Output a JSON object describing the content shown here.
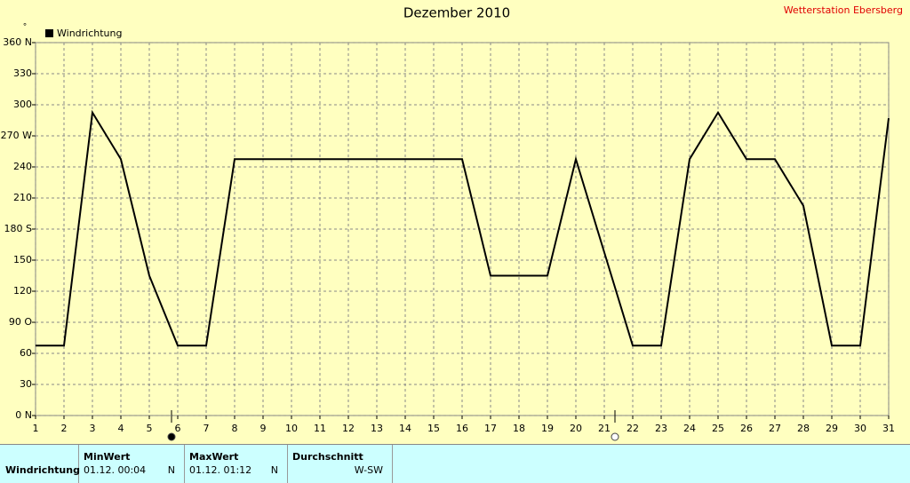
{
  "chart_data": {
    "type": "line",
    "title": "Dezember 2010",
    "station": "Wetterstation Ebersberg",
    "y_unit": "°",
    "x": [
      1,
      2,
      3,
      4,
      5,
      6,
      7,
      8,
      9,
      10,
      11,
      12,
      13,
      14,
      15,
      16,
      17,
      18,
      19,
      20,
      21,
      22,
      23,
      24,
      25,
      26,
      27,
      28,
      29,
      30,
      31
    ],
    "xlim": [
      1,
      31
    ],
    "xticks": [
      1,
      2,
      3,
      4,
      5,
      6,
      7,
      8,
      9,
      10,
      11,
      12,
      13,
      14,
      15,
      16,
      17,
      18,
      19,
      20,
      21,
      22,
      23,
      24,
      25,
      26,
      27,
      28,
      29,
      30,
      31
    ],
    "ylim": [
      0,
      360
    ],
    "yticks": [
      {
        "value": 0,
        "label": "0 N"
      },
      30,
      60,
      {
        "value": 90,
        "label": "90 O"
      },
      120,
      150,
      {
        "value": 180,
        "label": "180 S"
      },
      210,
      240,
      {
        "value": 270,
        "label": "270 W"
      },
      300,
      330,
      {
        "value": 360,
        "label": "360 N"
      }
    ],
    "grid": true,
    "legend": "top-left",
    "series": [
      {
        "name": "Windrichtung",
        "color": "#000000",
        "values": [
          67.5,
          67.5,
          292.5,
          247.5,
          135,
          67.5,
          67.5,
          247.5,
          247.5,
          247.5,
          247.5,
          247.5,
          247.5,
          247.5,
          247.5,
          247.5,
          135,
          135,
          135,
          247.5,
          157.5,
          67.5,
          67.5,
          247.5,
          292.5,
          247.5,
          247.5,
          202.5,
          67.5,
          67.5,
          287
        ]
      }
    ]
  },
  "table": {
    "headers": [
      "MinWert",
      "MaxWert",
      "Durchschnitt"
    ],
    "rows": [
      [
        "Windrichtung",
        "01.12.  00:04",
        "N",
        "01.12.  01:12",
        "N",
        "W-SW"
      ]
    ]
  }
}
